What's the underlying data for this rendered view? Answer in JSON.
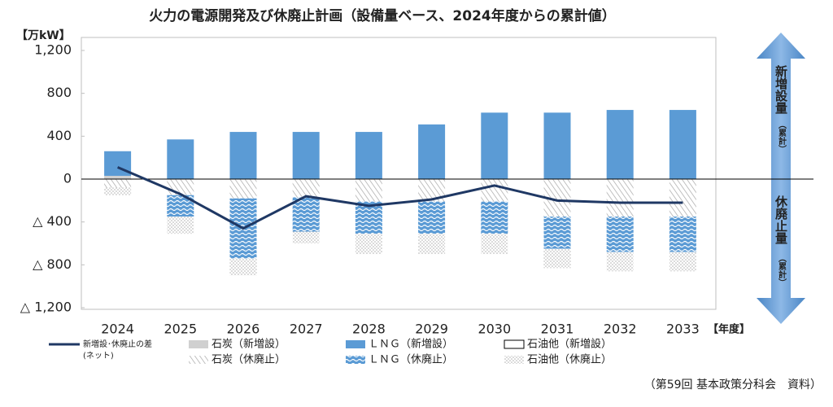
{
  "chart_data": {
    "type": "bar",
    "title": "火力の電源開発及び休廃止計画（設備量ベース、2024年度からの累計値）",
    "y_label": "【万kW】",
    "x_label": "【年度】",
    "source": "（第59回 基本政策分科会　資料）",
    "arrow_labels": [
      {
        "main": "新増設量",
        "note": "（累計）"
      },
      {
        "main": "休廃止量",
        "note": "（累計）"
      }
    ],
    "categories": [
      "2024",
      "2025",
      "2026",
      "2027",
      "2028",
      "2029",
      "2030",
      "2031",
      "2032",
      "2033"
    ],
    "ylim": [
      -1200,
      1200
    ],
    "yticks": [
      {
        "value": 1200,
        "label": "1,200"
      },
      800,
      400,
      0,
      {
        "value": -400,
        "label": "△ 400"
      },
      {
        "value": -800,
        "label": "△ 800"
      },
      {
        "value": -1200,
        "label": "△ 1,200"
      }
    ],
    "series": [
      {
        "name": "石炭（新増設）",
        "color": "#d0d0d0",
        "pattern": "solid",
        "values": [
          30,
          0,
          0,
          0,
          0,
          0,
          0,
          0,
          0,
          0
        ]
      },
      {
        "name": "ＬＮＧ（新増設）",
        "color": "#5b9bd5",
        "pattern": "solid",
        "values": [
          230,
          370,
          440,
          440,
          440,
          510,
          620,
          620,
          645,
          645
        ]
      },
      {
        "name": "石油他（新増設）",
        "color": "#ffffff",
        "pattern": "outline",
        "values": [
          0,
          0,
          0,
          0,
          0,
          0,
          0,
          0,
          0,
          0
        ]
      },
      {
        "name": "石炭（休廃止）",
        "color": "#a6a6a6",
        "pattern": "diagonal",
        "values": [
          -80,
          -150,
          -180,
          -170,
          -210,
          -210,
          -210,
          -350,
          -350,
          -350
        ]
      },
      {
        "name": "ＬＮＧ（休廃止）",
        "color": "#5b9bd5",
        "pattern": "wave",
        "values": [
          0,
          -200,
          -560,
          -320,
          -300,
          -300,
          -300,
          -300,
          -330,
          -330
        ]
      },
      {
        "name": "石油他（休廃止）",
        "color": "#b0b0b0",
        "pattern": "dots",
        "values": [
          -70,
          -160,
          -160,
          -110,
          -190,
          -190,
          -190,
          -180,
          -180,
          -180
        ]
      },
      {
        "name": "新増設･休廃止の差",
        "name_note": "(ネット)",
        "type": "line",
        "color": "#1f3864",
        "values": [
          110,
          -140,
          -460,
          -160,
          -250,
          -190,
          -60,
          -200,
          -220,
          -220
        ]
      }
    ]
  }
}
